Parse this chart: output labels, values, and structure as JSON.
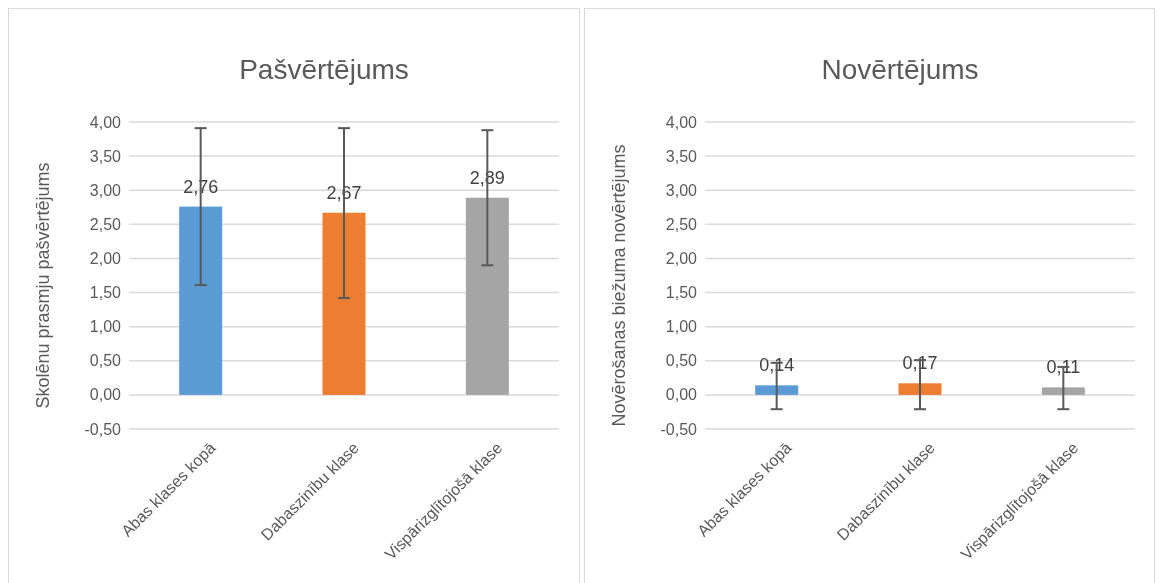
{
  "chart_data": [
    {
      "type": "bar",
      "title": "Pašvērtējums",
      "ylabel": "Skolēnu prasmju pašvērtējums",
      "categories": [
        "Abas klases kopā",
        "Dabaszinību klase",
        "Vispārizglītojošā klase"
      ],
      "values": [
        2.76,
        2.67,
        2.89
      ],
      "colors": [
        "#5b9bd5",
        "#ed7d31",
        "#a5a5a5"
      ],
      "errors": [
        [
          1.61,
          3.91
        ],
        [
          1.42,
          3.91
        ],
        [
          1.9,
          3.88
        ]
      ],
      "data_labels": true,
      "value_labels": [
        "2,76",
        "2,67",
        "2,89"
      ],
      "ylim": [
        -0.5,
        4
      ],
      "yticks": [
        {
          "value": -0.5,
          "label": "-0,50"
        },
        {
          "value": 0,
          "label": "0,00"
        },
        {
          "value": 0.5,
          "label": "0,50"
        },
        {
          "value": 1,
          "label": "1,00"
        },
        {
          "value": 1.5,
          "label": "1,50"
        },
        {
          "value": 2,
          "label": "2,00"
        },
        {
          "value": 2.5,
          "label": "2,50"
        },
        {
          "value": 3,
          "label": "3,00"
        },
        {
          "value": 3.5,
          "label": "3,50"
        },
        {
          "value": 4,
          "label": "4,00"
        }
      ],
      "grid": "y"
    },
    {
      "type": "bar",
      "title": "Novērtējums",
      "ylabel": "Novērošanas biežuma novērtējums",
      "categories": [
        "Abas klases kopā",
        "Dabaszinību klase",
        "Vispārizglītojošā klase"
      ],
      "values": [
        0.14,
        0.17,
        0.11
      ],
      "colors": [
        "#5b9bd5",
        "#ed7d31",
        "#a5a5a5"
      ],
      "errors": [
        [
          -0.21,
          0.47
        ],
        [
          -0.21,
          0.51
        ],
        [
          -0.21,
          0.41
        ]
      ],
      "data_labels": true,
      "value_labels": [
        "0,14",
        "0,17",
        "0,11"
      ],
      "ylim": [
        -0.5,
        4
      ],
      "yticks": [
        {
          "value": -0.5,
          "label": "-0,50"
        },
        {
          "value": 0,
          "label": "0,00"
        },
        {
          "value": 0.5,
          "label": "0,50"
        },
        {
          "value": 1,
          "label": "1,00"
        },
        {
          "value": 1.5,
          "label": "1,50"
        },
        {
          "value": 2,
          "label": "2,00"
        },
        {
          "value": 2.5,
          "label": "2,50"
        },
        {
          "value": 3,
          "label": "3,00"
        },
        {
          "value": 3.5,
          "label": "3,50"
        },
        {
          "value": 4,
          "label": "4,00"
        }
      ],
      "grid": "y"
    }
  ]
}
